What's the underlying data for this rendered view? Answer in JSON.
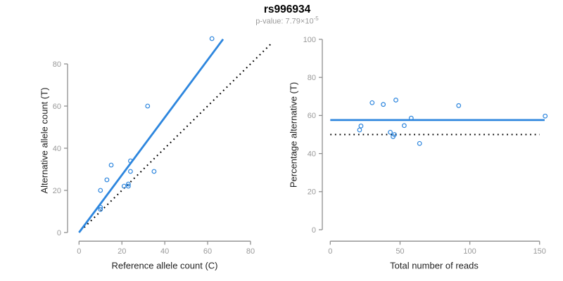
{
  "figure": {
    "title": "rs996934",
    "subtitle_prefix": "p-value: 7.79×10",
    "subtitle_exponent": "-5"
  },
  "colors": {
    "point_blue": "#2d86de",
    "line_blue": "#2d86de",
    "dotted_line_black": "#000000",
    "axis_line_gray": "#8f8f8f",
    "tick_label_gray": "#999999",
    "axis_label_dark": "#222222",
    "title_black": "#000000",
    "subtitle_gray": "#9b9b9b",
    "background": "#ffffff"
  },
  "chart_data": [
    {
      "id": "allele-count-scatter",
      "type": "scatter",
      "title": "",
      "xlabel": "Reference allele count (C)",
      "ylabel": "Alternative allele count (T)",
      "xticks": [
        0,
        20,
        40,
        60,
        80
      ],
      "yticks": [
        0,
        20,
        40,
        60,
        80
      ],
      "xlim": [
        0,
        90
      ],
      "ylim": [
        0,
        94
      ],
      "grid": false,
      "legend": "none",
      "marker": "open-circle",
      "points": [
        [
          10,
          11
        ],
        [
          10,
          12
        ],
        [
          10,
          20
        ],
        [
          13,
          25
        ],
        [
          15,
          32
        ],
        [
          21,
          22
        ],
        [
          23,
          22
        ],
        [
          23,
          23
        ],
        [
          24,
          29
        ],
        [
          24,
          34
        ],
        [
          32,
          60
        ],
        [
          35,
          29
        ],
        [
          62,
          92
        ]
      ],
      "fit_line": {
        "slope": 1.365,
        "intercept": 0,
        "x_range": [
          0,
          67.2
        ],
        "style": "solid"
      },
      "identity_line": {
        "slope": 1,
        "intercept": 0,
        "x_range": [
          2.4,
          90
        ],
        "style": "dotted"
      }
    },
    {
      "id": "percentage-vs-reads-scatter",
      "type": "scatter",
      "title": "",
      "xlabel": "Total number of reads",
      "ylabel": "Percentage alternative (T)",
      "xticks": [
        0,
        50,
        100,
        150
      ],
      "yticks": [
        0,
        20,
        40,
        60,
        80,
        100
      ],
      "xlim": [
        0,
        154
      ],
      "ylim": [
        0,
        100
      ],
      "grid": false,
      "legend": "none",
      "marker": "open-circle",
      "points": [
        [
          21,
          52.4
        ],
        [
          22,
          54.5
        ],
        [
          30,
          66.7
        ],
        [
          38,
          65.8
        ],
        [
          47,
          68.1
        ],
        [
          43,
          51.2
        ],
        [
          45,
          48.9
        ],
        [
          46,
          50.0
        ],
        [
          53,
          54.7
        ],
        [
          58,
          58.6
        ],
        [
          92,
          65.2
        ],
        [
          64,
          45.3
        ],
        [
          154,
          59.7
        ]
      ],
      "mean_line": {
        "y": 57.6,
        "x_range": [
          0,
          153.6
        ],
        "style": "solid"
      },
      "reference_line": {
        "y": 50,
        "x_range": [
          0,
          150
        ],
        "style": "dotted"
      }
    }
  ]
}
